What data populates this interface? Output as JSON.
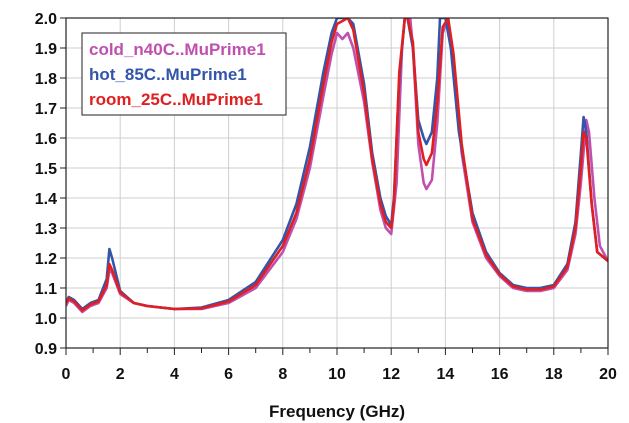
{
  "chart_data": {
    "type": "line",
    "title": "",
    "xlabel": "Frequency (GHz)",
    "ylabel": "",
    "xlim": [
      0,
      20
    ],
    "ylim": [
      0.9,
      2.0
    ],
    "x_ticks": [
      "0",
      "2",
      "4",
      "6",
      "8",
      "10",
      "12",
      "14",
      "16",
      "18",
      "20"
    ],
    "y_ticks": [
      "0.9",
      "1.0",
      "1.1",
      "1.2",
      "1.3",
      "1.4",
      "1.5",
      "1.6",
      "1.7",
      "1.8",
      "1.9",
      "2.0"
    ],
    "grid": true,
    "legend_position": "top-left",
    "series": [
      {
        "name": "cold_n40C..MuPrime1",
        "color": "#c050b0",
        "x": [
          0.0,
          0.1,
          0.3,
          0.6,
          0.9,
          1.2,
          1.5,
          1.6,
          1.7,
          2.0,
          2.5,
          3.0,
          3.5,
          4.0,
          5.0,
          6.0,
          7.0,
          8.0,
          8.5,
          9.0,
          9.5,
          9.8,
          10.0,
          10.2,
          10.4,
          10.6,
          11.0,
          11.3,
          11.6,
          11.8,
          12.0,
          12.2,
          12.4,
          12.5,
          12.7,
          12.8,
          13.0,
          13.2,
          13.3,
          13.5,
          13.7,
          13.9,
          14.1,
          14.3,
          14.6,
          15.0,
          15.5,
          16.0,
          16.5,
          17.0,
          17.5,
          18.0,
          18.5,
          18.8,
          19.0,
          19.2,
          19.3,
          19.5,
          19.7,
          20.0
        ],
        "y": [
          1.04,
          1.06,
          1.05,
          1.02,
          1.04,
          1.05,
          1.1,
          1.16,
          1.15,
          1.08,
          1.05,
          1.04,
          1.035,
          1.03,
          1.03,
          1.05,
          1.1,
          1.22,
          1.33,
          1.5,
          1.74,
          1.88,
          1.95,
          1.93,
          1.95,
          1.9,
          1.72,
          1.52,
          1.36,
          1.3,
          1.28,
          1.45,
          1.9,
          2.0,
          2.0,
          1.9,
          1.58,
          1.45,
          1.43,
          1.46,
          1.65,
          1.95,
          2.0,
          1.85,
          1.55,
          1.32,
          1.2,
          1.14,
          1.1,
          1.09,
          1.09,
          1.1,
          1.16,
          1.28,
          1.45,
          1.66,
          1.62,
          1.4,
          1.24,
          1.19
        ]
      },
      {
        "name": "hot_85C..MuPrime1",
        "color": "#3355aa",
        "x": [
          0.0,
          0.1,
          0.3,
          0.6,
          0.9,
          1.2,
          1.5,
          1.6,
          1.7,
          2.0,
          2.5,
          3.0,
          3.5,
          4.0,
          5.0,
          6.0,
          7.0,
          8.0,
          8.5,
          9.0,
          9.5,
          9.8,
          10.0,
          10.2,
          10.4,
          10.6,
          11.0,
          11.3,
          11.6,
          11.8,
          12.0,
          12.1,
          12.3,
          12.5,
          12.6,
          12.8,
          13.0,
          13.2,
          13.3,
          13.5,
          13.7,
          13.8,
          14.0,
          14.2,
          14.5,
          15.0,
          15.5,
          16.0,
          16.5,
          17.0,
          17.5,
          18.0,
          18.5,
          18.8,
          19.0,
          19.1,
          19.2,
          19.4,
          19.6,
          20.0
        ],
        "y": [
          1.05,
          1.07,
          1.06,
          1.03,
          1.05,
          1.06,
          1.13,
          1.23,
          1.2,
          1.09,
          1.05,
          1.04,
          1.035,
          1.03,
          1.035,
          1.06,
          1.12,
          1.26,
          1.38,
          1.57,
          1.82,
          1.95,
          2.0,
          2.0,
          2.0,
          1.98,
          1.78,
          1.55,
          1.4,
          1.34,
          1.31,
          1.4,
          1.8,
          2.0,
          2.0,
          1.9,
          1.66,
          1.6,
          1.58,
          1.62,
          1.8,
          2.0,
          2.0,
          1.9,
          1.62,
          1.35,
          1.22,
          1.15,
          1.11,
          1.1,
          1.1,
          1.11,
          1.18,
          1.32,
          1.55,
          1.67,
          1.62,
          1.38,
          1.22,
          1.19
        ]
      },
      {
        "name": "room_25C..MuPrime1",
        "color": "#e02020",
        "x": [
          0.0,
          0.1,
          0.3,
          0.6,
          0.9,
          1.2,
          1.5,
          1.6,
          1.7,
          2.0,
          2.5,
          3.0,
          3.5,
          4.0,
          5.0,
          6.0,
          7.0,
          8.0,
          8.5,
          9.0,
          9.5,
          9.8,
          10.0,
          10.2,
          10.4,
          10.6,
          11.0,
          11.3,
          11.6,
          11.8,
          12.0,
          12.1,
          12.3,
          12.5,
          12.6,
          12.8,
          13.0,
          13.2,
          13.3,
          13.5,
          13.7,
          13.9,
          14.1,
          14.3,
          14.6,
          15.0,
          15.5,
          16.0,
          16.5,
          17.0,
          17.5,
          18.0,
          18.5,
          18.8,
          19.0,
          19.1,
          19.2,
          19.4,
          19.6,
          20.0
        ],
        "y": [
          1.05,
          1.065,
          1.055,
          1.025,
          1.045,
          1.055,
          1.11,
          1.18,
          1.16,
          1.085,
          1.05,
          1.04,
          1.035,
          1.03,
          1.032,
          1.055,
          1.11,
          1.24,
          1.35,
          1.53,
          1.78,
          1.92,
          1.98,
          1.99,
          2.0,
          1.96,
          1.75,
          1.53,
          1.38,
          1.32,
          1.3,
          1.38,
          1.82,
          2.0,
          2.0,
          1.92,
          1.62,
          1.53,
          1.51,
          1.55,
          1.72,
          1.97,
          2.0,
          1.88,
          1.58,
          1.33,
          1.21,
          1.145,
          1.105,
          1.095,
          1.095,
          1.105,
          1.17,
          1.3,
          1.5,
          1.62,
          1.6,
          1.38,
          1.22,
          1.19
        ]
      }
    ]
  }
}
